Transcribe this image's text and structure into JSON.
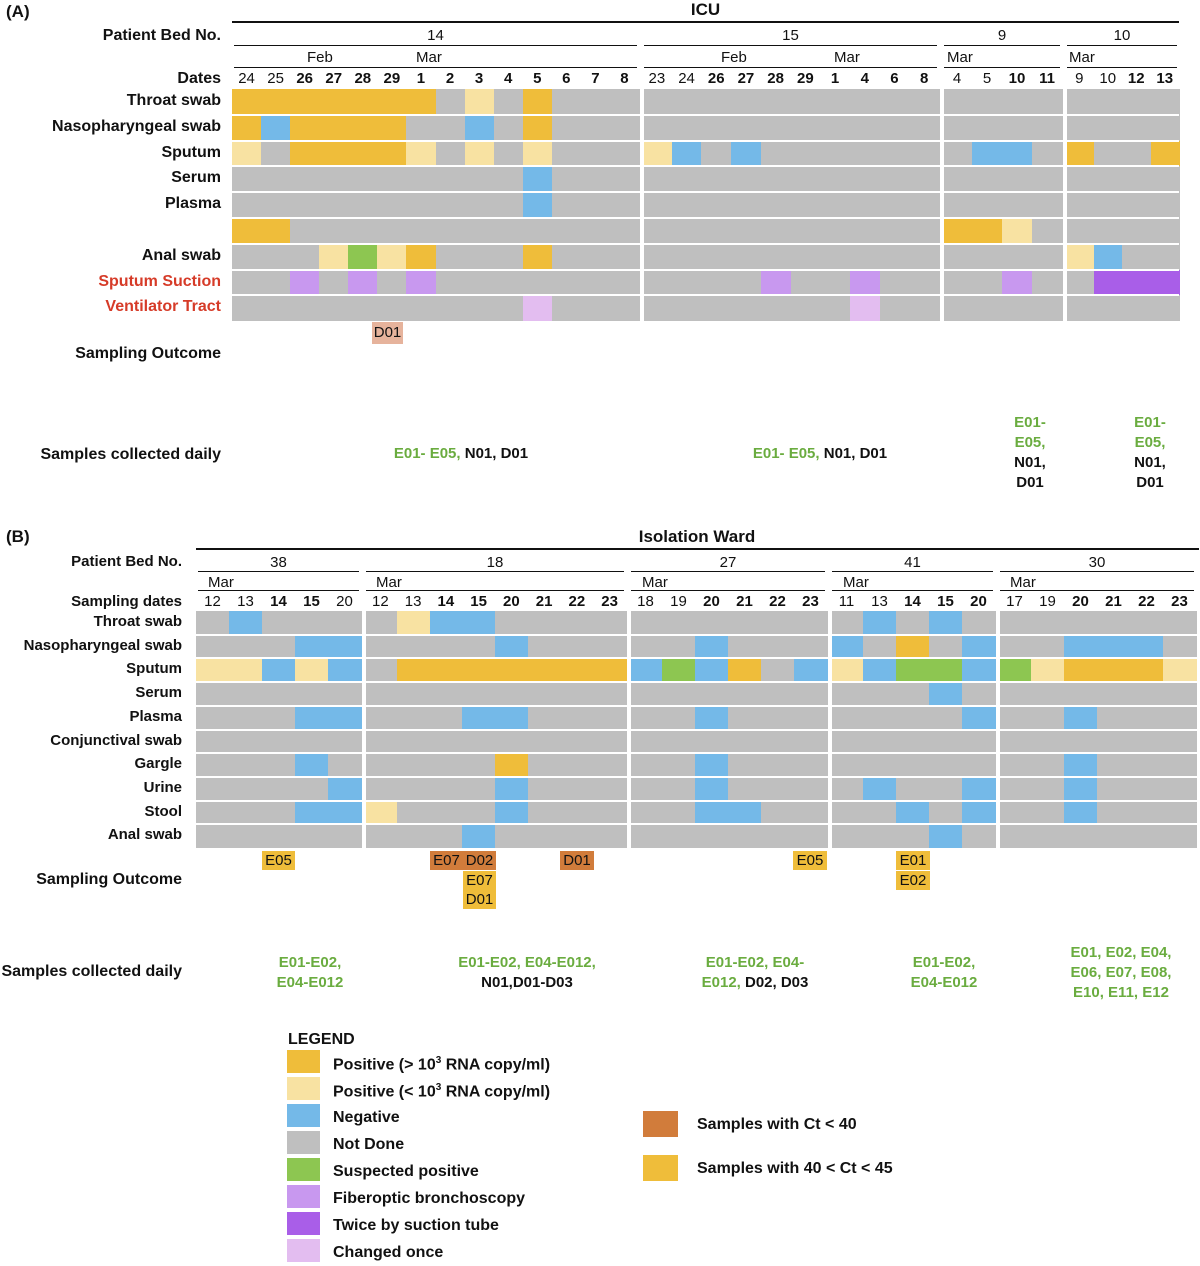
{
  "colors": {
    "positive_high": "#efbd3a",
    "positive_low": "#f8e2a2",
    "negative": "#74b9e8",
    "not_done": "#bfbfbf",
    "suspected": "#8dc651",
    "fiberoptic": "#c898ef",
    "twice_suction": "#a95ee8",
    "changed_once": "#e3bdf0",
    "ct_lt_40": "#d17c3b",
    "ct_40_45": "#efbd3a",
    "d01_panel_a": "#e6b39c",
    "daily_green": "#6aac3f",
    "label_red": "#d63b28"
  },
  "panel_a": {
    "label": "(A)",
    "title": "ICU",
    "bed_label": "Patient Bed No.",
    "dates_label": "Dates",
    "beds": [
      {
        "bed": "14",
        "months": [
          "Feb",
          "Mar"
        ],
        "dates": [
          "24",
          "25",
          "26",
          "27",
          "28",
          "29",
          "1",
          "2",
          "3",
          "4",
          "5",
          "6",
          "7",
          "8"
        ],
        "bold": [
          false,
          false,
          true,
          true,
          true,
          true,
          true,
          true,
          true,
          true,
          true,
          true,
          true,
          true
        ]
      },
      {
        "bed": "15",
        "months": [
          "Feb",
          "Mar"
        ],
        "dates": [
          "23",
          "24",
          "26",
          "27",
          "28",
          "29",
          "1",
          "4",
          "6",
          "8"
        ],
        "bold": [
          false,
          false,
          true,
          true,
          true,
          true,
          true,
          true,
          true,
          true
        ]
      },
      {
        "bed": "9",
        "months": [
          "Mar"
        ],
        "dates": [
          "4",
          "5",
          "10",
          "11"
        ],
        "bold": [
          false,
          false,
          true,
          true
        ]
      },
      {
        "bed": "10",
        "months": [
          "Mar"
        ],
        "dates": [
          "9",
          "10",
          "12",
          "13"
        ],
        "bold": [
          false,
          false,
          true,
          true
        ]
      }
    ],
    "rows": [
      {
        "label": "Throat swab",
        "style": "normal",
        "cells": [
          "HHHHHHHNLNHNNN",
          "NNNNNNNNNN",
          "NNNN",
          "NNNN"
        ]
      },
      {
        "label": "Nasopharyngeal swab",
        "style": "normal",
        "cells": [
          "HGHHHHNNGNHNNN",
          "NNNNNNNNNN",
          "NNNN",
          "NNNN"
        ]
      },
      {
        "label": "Sputum",
        "style": "normal",
        "cells": [
          "LNHHHHLNLNLNNN",
          "LGNGNNNNNN",
          "NGGN",
          "HNNH"
        ]
      },
      {
        "label": "Serum",
        "style": "normal",
        "cells": [
          "NNNNNNNNNNGNNN",
          "NNNNNNNNNN",
          "NNNN",
          "NNNN"
        ]
      },
      {
        "label": "Plasma",
        "style": "normal",
        "cells": [
          "NNNNNNNNNNGNNN",
          "NNNNNNNNNN",
          "NNNN",
          "NNNN"
        ]
      },
      {
        "label": "",
        "style": "normal",
        "cells": [
          "HHNNNNNNNNNNNN",
          "NNNNNNNNNN",
          "HHLN",
          "NNNN"
        ]
      },
      {
        "label": "Anal swab",
        "style": "normal",
        "cells": [
          "NNNLSLHNNNHNNN",
          "NNNNNNNNNN",
          "NNNN",
          "LGNN"
        ]
      },
      {
        "label": "Sputum Suction",
        "style": "red",
        "cells": [
          "NNFNFNFNNNNNNN",
          "NNNNFNNFNN",
          "NNFN",
          "NTTT"
        ]
      },
      {
        "label": "Ventilator Tract",
        "style": "red",
        "cells": [
          "NNNNNNNNNNCNNN",
          "NNNNNNNCNN",
          "NNNN",
          "NNNN"
        ]
      }
    ],
    "outcome_label": "Sampling Outcome",
    "outcome_badge": "D01",
    "daily_label": "Samples collected daily",
    "daily": [
      {
        "green": "E01- E05,",
        "black": "N01, D01"
      },
      {
        "green": "E01- E05,",
        "black": "N01, D01"
      },
      {
        "green_1": "E01-",
        "green_2": "E05,",
        "black_1": "N01,",
        "black_2": "D01"
      },
      {
        "green_1": "E01-",
        "green_2": "E05,",
        "black_1": "N01,",
        "black_2": "D01"
      }
    ]
  },
  "panel_b": {
    "label": "(B)",
    "title": "Isolation Ward",
    "bed_label": "Patient Bed No.",
    "dates_label": "Sampling dates",
    "beds": [
      {
        "bed": "38",
        "months": [
          "Mar"
        ],
        "dates": [
          "12",
          "13",
          "14",
          "15",
          "20"
        ],
        "bold": [
          false,
          false,
          true,
          true,
          false
        ]
      },
      {
        "bed": "18",
        "months": [
          "Mar"
        ],
        "dates": [
          "12",
          "13",
          "14",
          "15",
          "20",
          "21",
          "22",
          "23"
        ],
        "bold": [
          false,
          false,
          true,
          true,
          true,
          true,
          true,
          true
        ]
      },
      {
        "bed": "27",
        "months": [
          "Mar"
        ],
        "dates": [
          "18",
          "19",
          "20",
          "21",
          "22",
          "23"
        ],
        "bold": [
          false,
          false,
          true,
          true,
          true,
          true
        ]
      },
      {
        "bed": "41",
        "months": [
          "Mar"
        ],
        "dates": [
          "11",
          "13",
          "14",
          "15",
          "20"
        ],
        "bold": [
          false,
          false,
          true,
          true,
          true
        ]
      },
      {
        "bed": "30",
        "months": [
          "Mar"
        ],
        "dates": [
          "17",
          "19",
          "20",
          "21",
          "22",
          "23"
        ],
        "bold": [
          false,
          false,
          true,
          true,
          true,
          true
        ]
      }
    ],
    "rows": [
      {
        "label": "Throat swab",
        "cells": [
          "NGNNN",
          "NLGGNNNN",
          "NNNNNN",
          "NGNGN",
          "NNNNNN"
        ]
      },
      {
        "label": "Nasopharyngeal swab",
        "cells": [
          "NNNGG",
          "NNNNGNNN",
          "NNGNNN",
          "GNHNG",
          "NNGGGN"
        ]
      },
      {
        "label": "Sputum",
        "cells": [
          "LLGLG",
          "NHHHHHHH",
          "GSGHNG",
          "LGSSG",
          "SLHHHL"
        ]
      },
      {
        "label": "Serum",
        "cells": [
          "NNNNN",
          "NNNNNNNN",
          "NNNNNN",
          "NNNGN",
          "NNNNNN"
        ]
      },
      {
        "label": "Plasma",
        "cells": [
          "NNNGG",
          "NNNGGNNN",
          "NNGNNN",
          "NNNNG",
          "NNGNNN"
        ]
      },
      {
        "label": "Conjunctival swab",
        "cells": [
          "NNNNN",
          "NNNNNNNN",
          "NNNNNN",
          "NNNNN",
          "NNNNNN"
        ]
      },
      {
        "label": "Gargle",
        "cells": [
          "NNNGN",
          "NNNNHNNN",
          "NNGNNN",
          "NNNNN",
          "NNGNNN"
        ]
      },
      {
        "label": "Urine",
        "cells": [
          "NNNNG",
          "NNNNGNNN",
          "NNGNNN",
          "NGNNG",
          "NNGNNN"
        ]
      },
      {
        "label": "Stool",
        "cells": [
          "NNNGG",
          "LNNNGNNN",
          "NNGGNN",
          "NNGNG",
          "NNGNNN"
        ]
      },
      {
        "label": "Anal swab",
        "cells": [
          "NNNNN",
          "NNNGNNNN",
          "NNNNNN",
          "NNNGN",
          "NNNNNN"
        ]
      }
    ],
    "outcome_label": "Sampling Outcome",
    "outcome_badges": {
      "b38": "E05",
      "b18_e07_top": "E07",
      "b18_d02": "D02",
      "b18_e07": "E07",
      "b18_d01": "D01",
      "b18_d01_late": "D01",
      "b27": "E05",
      "b41_e01": "E01",
      "b41_e02": "E02"
    },
    "daily_label": "Samples collected daily",
    "daily": {
      "b38": {
        "g1": "E01-E02,",
        "g2": "E04-E012"
      },
      "b18": {
        "g1": "E01-E02, E04-E012,",
        "k2": "N01,D01-D03"
      },
      "b27": {
        "g1": "E01-E02, E04-",
        "g2": "E012,",
        "k2": "D02, D03"
      },
      "b41": {
        "g1": "E01-E02,",
        "g2": "E04-E012"
      },
      "b30": {
        "g1": "E01, E02, E04,",
        "g2": "E06, E07, E08,",
        "g3": "E10, E11, E12"
      }
    }
  },
  "legend": {
    "title": "LEGEND",
    "pos_high_a": "Positive (> 10",
    "pos_high_sup": "3",
    "pos_high_b": " RNA copy/ml)",
    "pos_low_a": "Positive (< 10",
    "pos_low_sup": "3",
    "pos_low_b": " RNA copy/ml)",
    "negative": "Negative",
    "not_done": "Not Done",
    "suspected": "Suspected positive",
    "fiberoptic": "Fiberoptic bronchoscopy",
    "twice": "Twice by suction tube",
    "changed": "Changed once",
    "ct_lt_40": "Samples with Ct < 40",
    "ct_40_45": "Samples with 40 < Ct < 45"
  }
}
